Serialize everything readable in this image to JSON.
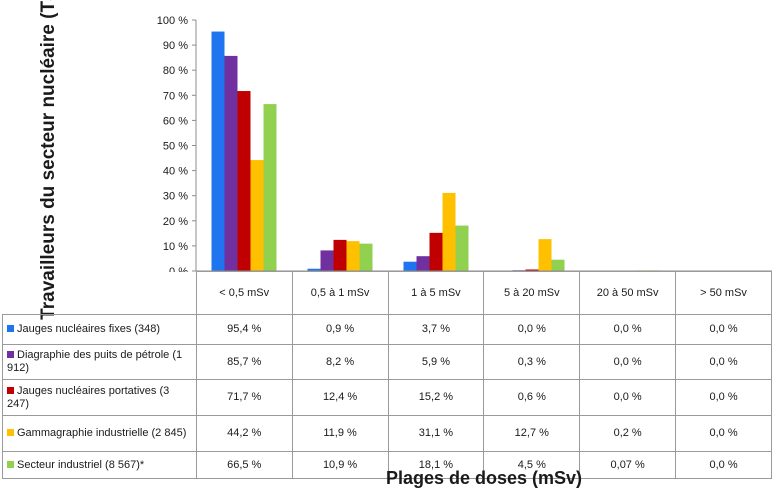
{
  "chart_data": {
    "type": "bar",
    "ylabel": "Travailleurs du secteur nucléaire (TSN)",
    "xlabel": "Plages de doses (mSv)",
    "ylim": [
      0,
      100
    ],
    "yticks": [
      "0 %",
      "10 %",
      "20 %",
      "30 %",
      "40 %",
      "50 %",
      "60 %",
      "70 %",
      "80 %",
      "90 %",
      "100 %"
    ],
    "categories": [
      "< 0,5 mSv",
      "0,5 à 1 mSv",
      "1 à 5 mSv",
      "5 à 20 mSv",
      "20 à 50 mSv",
      "> 50 mSv"
    ],
    "grid": false,
    "legend": "data-table",
    "series": [
      {
        "name": "Jauges nucléaires fixes (348)",
        "color": "#1f74f0",
        "values": [
          95.4,
          0.9,
          3.7,
          0.0,
          0.0,
          0.0
        ],
        "labels": [
          "95,4 %",
          "0,9 %",
          "3,7 %",
          "0,0 %",
          "0,0 %",
          "0,0 %"
        ]
      },
      {
        "name": "Diagraphie des puits de pétrole (1 912)",
        "color": "#7030a0",
        "values": [
          85.7,
          8.2,
          5.9,
          0.3,
          0.0,
          0.0
        ],
        "labels": [
          "85,7 %",
          "8,2 %",
          "5,9 %",
          "0,3 %",
          "0,0 %",
          "0,0 %"
        ]
      },
      {
        "name": "Jauges nucléaires portatives (3 247)",
        "color": "#c00000",
        "values": [
          71.7,
          12.4,
          15.2,
          0.6,
          0.0,
          0.0
        ],
        "labels": [
          "71,7 %",
          "12,4 %",
          "15,2 %",
          "0,6 %",
          "0,0 %",
          "0,0 %"
        ]
      },
      {
        "name": "Gammagraphie industrielle (2 845)",
        "color": "#ffc000",
        "values": [
          44.2,
          11.9,
          31.1,
          12.7,
          0.2,
          0.0
        ],
        "labels": [
          "44,2 %",
          "11,9 %",
          "31,1 %",
          "12,7 %",
          "0,2 %",
          "0,0 %"
        ]
      },
      {
        "name": "Secteur industriel (8 567)*",
        "color": "#92d050",
        "values": [
          66.5,
          10.9,
          18.1,
          4.5,
          0.07,
          0.0
        ],
        "labels": [
          "66,5 %",
          "10,9 %",
          "18,1 %",
          "4,5 %",
          "0,07 %",
          "0,0 %"
        ]
      }
    ]
  }
}
